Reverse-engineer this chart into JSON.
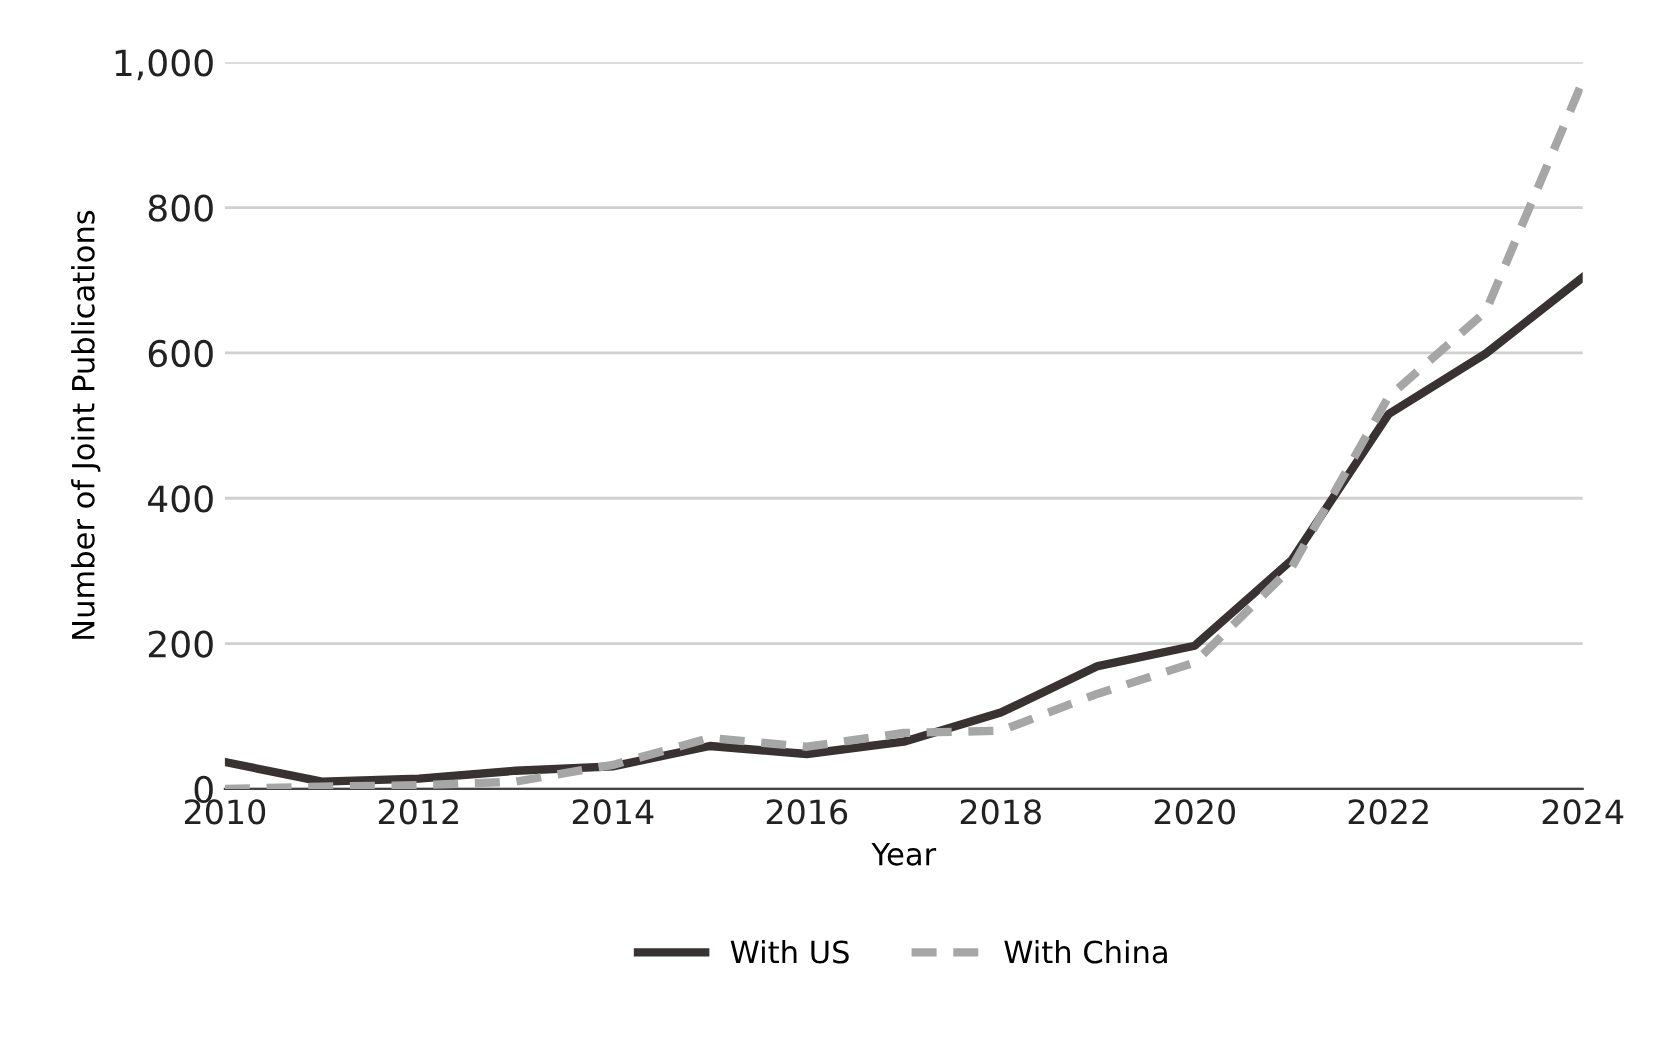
{
  "chart_data": {
    "type": "line",
    "xlabel": "Year",
    "ylabel": "Number of Joint Publications",
    "x": [
      2010,
      2011,
      2012,
      2013,
      2014,
      2015,
      2016,
      2017,
      2018,
      2019,
      2020,
      2021,
      2022,
      2023,
      2024
    ],
    "series": [
      {
        "name": "With US",
        "color": "#383232",
        "line_style": "solid",
        "values": [
          37,
          10,
          14,
          25,
          31,
          59,
          48,
          65,
          105,
          169,
          197,
          315,
          516,
          599,
          704
        ]
      },
      {
        "name": "With China",
        "color": "#a6a6a6",
        "line_style": "dashed",
        "values": [
          0,
          3,
          5,
          10,
          33,
          70,
          58,
          77,
          80,
          131,
          174,
          305,
          540,
          657,
          974
        ]
      }
    ],
    "xlim": [
      2010,
      2024
    ],
    "xticks": [
      2010,
      2012,
      2014,
      2016,
      2018,
      2020,
      2022,
      2024
    ],
    "ylim": [
      0,
      1000
    ],
    "yticks": [
      0,
      200,
      400,
      600,
      800,
      {
        "value": 1000,
        "label": "1,000"
      }
    ],
    "grid": "y",
    "legend": "bottom",
    "marker": "none"
  }
}
